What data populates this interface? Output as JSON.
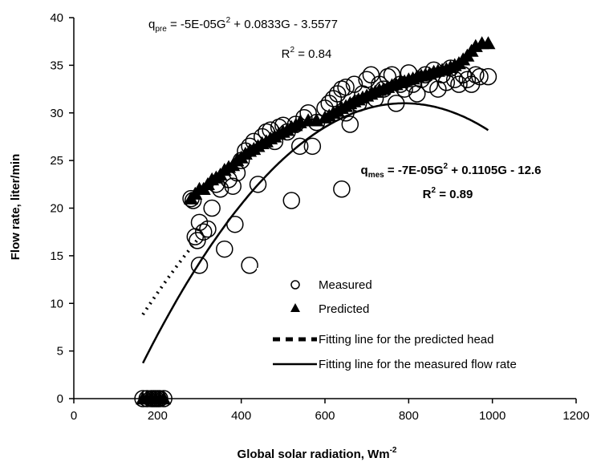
{
  "chart_data": {
    "type": "scatter",
    "xlabel": "Global solar radiation, Wm",
    "xlabel_sup": "-2",
    "ylabel": "Flow rate, liter/min",
    "xlim": [
      0,
      1200
    ],
    "ylim": [
      0,
      40
    ],
    "x_ticks": [
      "0",
      "200",
      "400",
      "600",
      "800",
      "1000",
      "1200"
    ],
    "y_ticks": [
      "0",
      "5",
      "10",
      "15",
      "20",
      "25",
      "30",
      "35",
      "40"
    ],
    "grid": false,
    "legend_position": "lower-right",
    "annotations": {
      "pre_eq": {
        "q": "q",
        "sub": "pre",
        "a": " = -5E-05G",
        "sup": "2",
        "b": " + 0.0833G - 3.5577"
      },
      "pre_r2": {
        "r": "R",
        "sup": "2",
        "b": " = 0.84"
      },
      "mes_eq": {
        "q": "q",
        "sub": "mes",
        "a": " = -7E-05G",
        "sup": "2",
        "b": " + 0.1105G - 12.6"
      },
      "mes_r2": {
        "r": "R",
        "sup": "2",
        "b": " = 0.89"
      }
    },
    "series": [
      {
        "name": "Measured",
        "marker": "open-circle",
        "points": [
          [
            165,
            0
          ],
          [
            175,
            0
          ],
          [
            185,
            0
          ],
          [
            195,
            0
          ],
          [
            205,
            0
          ],
          [
            215,
            0
          ],
          [
            190,
            0
          ],
          [
            200,
            0
          ],
          [
            280,
            21
          ],
          [
            285,
            20.8
          ],
          [
            290,
            17
          ],
          [
            295,
            16.6
          ],
          [
            300,
            18.5
          ],
          [
            300,
            14
          ],
          [
            310,
            17.5
          ],
          [
            320,
            17.8
          ],
          [
            330,
            20
          ],
          [
            340,
            22.5
          ],
          [
            350,
            22
          ],
          [
            360,
            15.7
          ],
          [
            370,
            23
          ],
          [
            380,
            22.3
          ],
          [
            385,
            18.3
          ],
          [
            390,
            23.7
          ],
          [
            400,
            25
          ],
          [
            410,
            26
          ],
          [
            420,
            14
          ],
          [
            420,
            26.5
          ],
          [
            430,
            27
          ],
          [
            440,
            22.5
          ],
          [
            450,
            27.5
          ],
          [
            460,
            28
          ],
          [
            470,
            28.2
          ],
          [
            480,
            27
          ],
          [
            490,
            28.5
          ],
          [
            500,
            28.7
          ],
          [
            510,
            28
          ],
          [
            520,
            20.8
          ],
          [
            530,
            28.8
          ],
          [
            540,
            26.5
          ],
          [
            550,
            29.5
          ],
          [
            560,
            30
          ],
          [
            570,
            26.5
          ],
          [
            580,
            29
          ],
          [
            600,
            30.5
          ],
          [
            610,
            31
          ],
          [
            620,
            31.5
          ],
          [
            630,
            32
          ],
          [
            640,
            22
          ],
          [
            640,
            32.5
          ],
          [
            650,
            30
          ],
          [
            650,
            32.7
          ],
          [
            660,
            28.8
          ],
          [
            670,
            33
          ],
          [
            680,
            31
          ],
          [
            690,
            32
          ],
          [
            700,
            33.5
          ],
          [
            710,
            34
          ],
          [
            720,
            31.5
          ],
          [
            730,
            33
          ],
          [
            740,
            32.5
          ],
          [
            750,
            33.8
          ],
          [
            760,
            34
          ],
          [
            770,
            31
          ],
          [
            780,
            33
          ],
          [
            790,
            32.5
          ],
          [
            800,
            34.2
          ],
          [
            810,
            33
          ],
          [
            820,
            32
          ],
          [
            830,
            33.5
          ],
          [
            840,
            34
          ],
          [
            850,
            33
          ],
          [
            860,
            34.5
          ],
          [
            870,
            32.5
          ],
          [
            880,
            34
          ],
          [
            890,
            33.2
          ],
          [
            900,
            34.7
          ],
          [
            910,
            33.5
          ],
          [
            920,
            33
          ],
          [
            930,
            34
          ],
          [
            940,
            33.5
          ],
          [
            950,
            33
          ],
          [
            960,
            34
          ],
          [
            970,
            33.8
          ],
          [
            990,
            33.8
          ]
        ]
      },
      {
        "name": "Predicted",
        "marker": "filled-triangle",
        "points": [
          [
            165,
            0
          ],
          [
            175,
            0
          ],
          [
            185,
            0
          ],
          [
            195,
            0
          ],
          [
            205,
            0
          ],
          [
            215,
            0
          ],
          [
            280,
            21
          ],
          [
            290,
            21.5
          ],
          [
            300,
            22
          ],
          [
            310,
            22
          ],
          [
            320,
            22.5
          ],
          [
            330,
            23
          ],
          [
            340,
            23.2
          ],
          [
            350,
            23.5
          ],
          [
            360,
            24
          ],
          [
            370,
            24.3
          ],
          [
            380,
            24.5
          ],
          [
            390,
            25
          ],
          [
            400,
            25.3
          ],
          [
            410,
            25.7
          ],
          [
            420,
            26
          ],
          [
            430,
            26.2
          ],
          [
            440,
            26.5
          ],
          [
            450,
            26.8
          ],
          [
            460,
            27
          ],
          [
            470,
            27.3
          ],
          [
            480,
            27.5
          ],
          [
            490,
            27.8
          ],
          [
            500,
            28
          ],
          [
            510,
            28.2
          ],
          [
            520,
            28.5
          ],
          [
            530,
            28.7
          ],
          [
            540,
            29
          ],
          [
            560,
            29.2
          ],
          [
            580,
            29.2
          ],
          [
            600,
            29.5
          ],
          [
            610,
            29.7
          ],
          [
            620,
            30
          ],
          [
            630,
            30.2
          ],
          [
            640,
            30.5
          ],
          [
            650,
            30.7
          ],
          [
            660,
            31
          ],
          [
            670,
            31.2
          ],
          [
            680,
            31.4
          ],
          [
            690,
            31.6
          ],
          [
            700,
            31.8
          ],
          [
            710,
            32
          ],
          [
            720,
            32.2
          ],
          [
            730,
            32.4
          ],
          [
            740,
            32.5
          ],
          [
            750,
            32.7
          ],
          [
            760,
            32.9
          ],
          [
            770,
            33
          ],
          [
            780,
            33.2
          ],
          [
            790,
            33.3
          ],
          [
            800,
            33.5
          ],
          [
            810,
            33.6
          ],
          [
            820,
            33.8
          ],
          [
            830,
            33.9
          ],
          [
            840,
            34
          ],
          [
            850,
            34.1
          ],
          [
            860,
            34.3
          ],
          [
            870,
            34.4
          ],
          [
            880,
            34.5
          ],
          [
            890,
            34.6
          ],
          [
            900,
            34.8
          ],
          [
            910,
            35
          ],
          [
            920,
            35.2
          ],
          [
            930,
            35.6
          ],
          [
            940,
            36
          ],
          [
            950,
            36.5
          ],
          [
            960,
            37
          ],
          [
            975,
            37.3
          ],
          [
            990,
            37.3
          ]
        ]
      },
      {
        "name": "Fitting line for the predicted head",
        "line_style": "dashed",
        "equation": {
          "a": -5e-05,
          "b": 0.0833,
          "c": -3.5577
        },
        "x_range": [
          165,
          300
        ]
      },
      {
        "name": "Fitting line for the measured flow rate",
        "line_style": "solid",
        "equation": {
          "a": -7e-05,
          "b": 0.1105,
          "c": -12.6
        },
        "x_range": [
          165,
          990
        ]
      }
    ]
  }
}
